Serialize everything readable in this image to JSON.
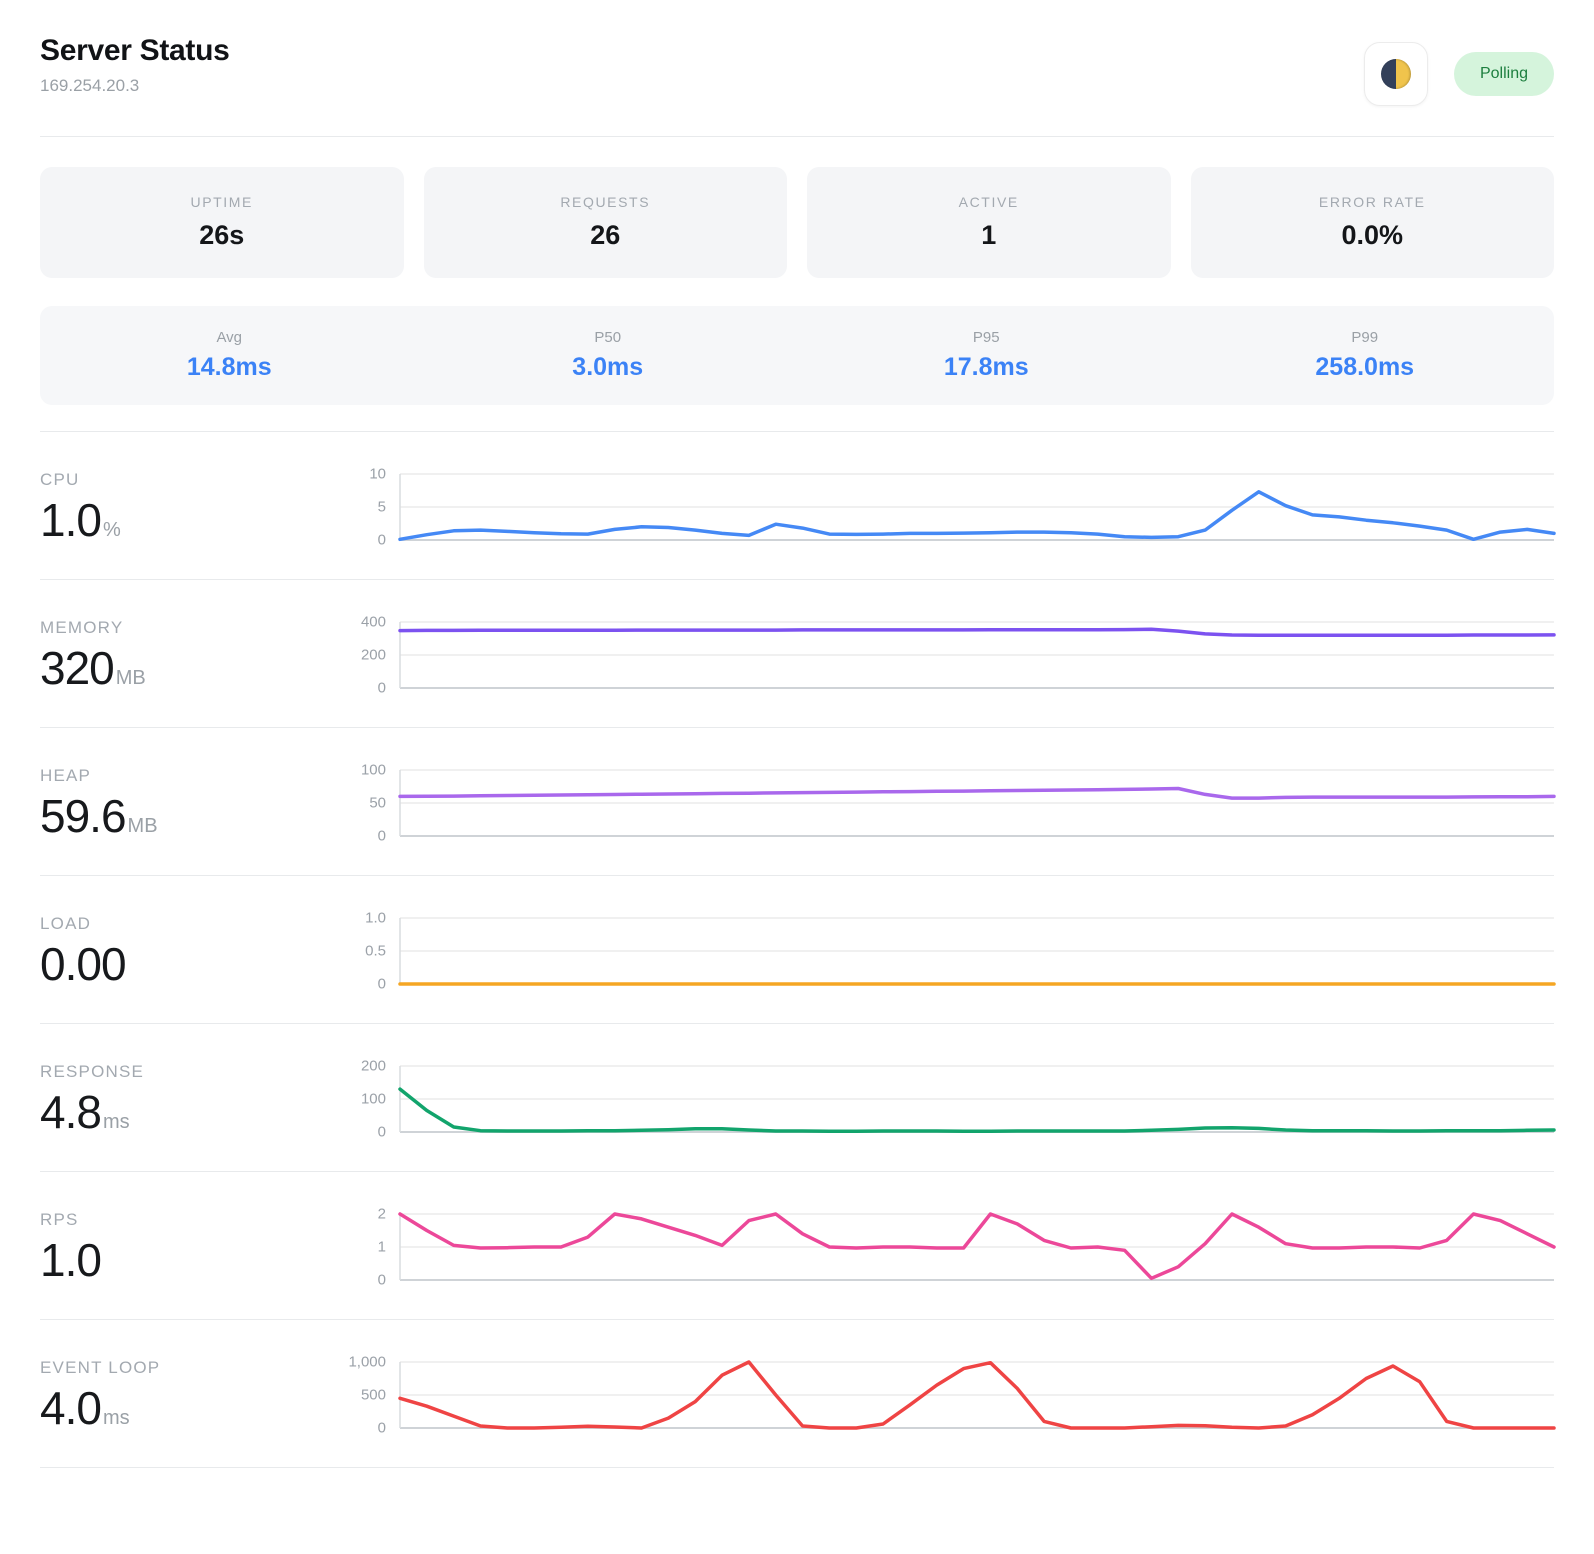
{
  "header": {
    "title": "Server Status",
    "subtitle": "169.254.20.3",
    "theme_icon": "first-quarter-moon",
    "status_badge": "Polling"
  },
  "colors": {
    "accent_blue": "#3b82f6",
    "badge_bg": "#d5f4dc",
    "badge_text": "#1d7f3f"
  },
  "stats": [
    {
      "label": "UPTIME",
      "value": "26s"
    },
    {
      "label": "REQUESTS",
      "value": "26"
    },
    {
      "label": "ACTIVE",
      "value": "1"
    },
    {
      "label": "ERROR RATE",
      "value": "0.0%"
    }
  ],
  "latency": [
    {
      "label": "Avg",
      "value": "14.8ms"
    },
    {
      "label": "P50",
      "value": "3.0ms"
    },
    {
      "label": "P95",
      "value": "17.8ms"
    },
    {
      "label": "P99",
      "value": "258.0ms"
    }
  ],
  "chart_data": [
    {
      "type": "line",
      "title": "CPU",
      "current_value": "1.0",
      "unit": "%",
      "color": "#4589f5",
      "ylim": [
        0,
        10
      ],
      "yticks": [
        "10",
        "5",
        "0"
      ],
      "grid": "horizontal",
      "legend": "none",
      "values": [
        0.1,
        0.8,
        1.4,
        1.5,
        1.3,
        1.1,
        0.95,
        0.9,
        1.6,
        2.0,
        1.9,
        1.5,
        1.0,
        0.7,
        2.4,
        1.8,
        0.9,
        0.85,
        0.9,
        1.0,
        1.0,
        1.05,
        1.1,
        1.2,
        1.2,
        1.1,
        0.9,
        0.5,
        0.4,
        0.5,
        1.5,
        4.5,
        7.3,
        5.2,
        3.8,
        3.5,
        3.0,
        2.6,
        2.1,
        1.5,
        0.1,
        1.2,
        1.6,
        1.0
      ]
    },
    {
      "type": "line",
      "title": "MEMORY",
      "current_value": "320",
      "unit": "MB",
      "color": "#7c52f0",
      "ylim": [
        0,
        400
      ],
      "yticks": [
        "400",
        "200",
        "0"
      ],
      "grid": "horizontal",
      "legend": "none",
      "values": [
        348,
        349,
        349,
        350,
        350,
        350,
        350,
        350,
        350,
        351,
        351,
        351,
        351,
        351,
        351,
        352,
        352,
        352,
        352,
        352,
        352,
        352,
        353,
        353,
        353,
        353,
        353,
        354,
        356,
        345,
        328,
        321,
        320,
        320,
        320,
        320,
        320,
        320,
        320,
        320,
        321,
        321,
        321,
        322
      ]
    },
    {
      "type": "line",
      "title": "HEAP",
      "current_value": "59.6",
      "unit": "MB",
      "color": "#a968ec",
      "ylim": [
        0,
        100
      ],
      "yticks": [
        "100",
        "50",
        "0"
      ],
      "grid": "horizontal",
      "legend": "none",
      "values": [
        60,
        60.2,
        60.5,
        60.9,
        61.3,
        61.7,
        62.1,
        62.5,
        62.9,
        63.3,
        63.7,
        64.1,
        64.5,
        64.9,
        65.3,
        65.7,
        66.1,
        66.5,
        66.9,
        67.3,
        67.7,
        68.1,
        68.5,
        68.9,
        69.3,
        69.7,
        70.1,
        70.6,
        71.2,
        72,
        63,
        57.5,
        57.5,
        58.5,
        59,
        59,
        59,
        59,
        59,
        59,
        59.2,
        59.4,
        59.6,
        60
      ]
    },
    {
      "type": "line",
      "title": "LOAD",
      "current_value": "0.00",
      "unit": "",
      "color": "#f5a623",
      "ylim": [
        0,
        1
      ],
      "yticks": [
        "1.0",
        "0.5",
        "0"
      ],
      "grid": "horizontal",
      "legend": "none",
      "values": [
        0,
        0,
        0,
        0,
        0,
        0,
        0,
        0,
        0,
        0,
        0,
        0
      ]
    },
    {
      "type": "line",
      "title": "RESPONSE",
      "current_value": "4.8",
      "unit": "ms",
      "color": "#12a46c",
      "ylim": [
        0,
        200
      ],
      "yticks": [
        "200",
        "100",
        "0"
      ],
      "grid": "horizontal",
      "legend": "none",
      "values": [
        130,
        65,
        15,
        4,
        3,
        3,
        3,
        4,
        4,
        5,
        7,
        10,
        10,
        6,
        3,
        3,
        2,
        2,
        3,
        3,
        3,
        2,
        2,
        3,
        3,
        3,
        3,
        3,
        5,
        8,
        12,
        13,
        11,
        6,
        4,
        4,
        4,
        3,
        3,
        4,
        4,
        4,
        5,
        6
      ]
    },
    {
      "type": "line",
      "title": "RPS",
      "current_value": "1.0",
      "unit": "",
      "color": "#ec4899",
      "ylim": [
        0,
        2
      ],
      "yticks": [
        "2",
        "1",
        "0"
      ],
      "grid": "horizontal",
      "legend": "none",
      "values": [
        2,
        1.5,
        1.05,
        0.97,
        0.98,
        1,
        1,
        1.3,
        2,
        1.85,
        1.6,
        1.35,
        1.05,
        1.8,
        2,
        1.4,
        1.0,
        0.97,
        1,
        1,
        0.97,
        0.97,
        2,
        1.7,
        1.2,
        0.97,
        1,
        0.9,
        0.05,
        0.4,
        1.1,
        2,
        1.6,
        1.1,
        0.97,
        0.97,
        1,
        1,
        0.97,
        1.2,
        2,
        1.8,
        1.4,
        1
      ]
    },
    {
      "type": "line",
      "title": "EVENT LOOP",
      "current_value": "4.0",
      "unit": "ms",
      "color": "#ef4444",
      "ylim": [
        0,
        1000
      ],
      "yticks": [
        "1,000",
        "500",
        "0"
      ],
      "grid": "horizontal",
      "legend": "none",
      "values": [
        450,
        330,
        180,
        30,
        0,
        0,
        10,
        25,
        15,
        0,
        150,
        400,
        800,
        1000,
        500,
        30,
        0,
        0,
        60,
        350,
        650,
        900,
        990,
        600,
        100,
        0,
        0,
        0,
        20,
        40,
        35,
        10,
        0,
        30,
        200,
        450,
        750,
        940,
        700,
        100,
        0,
        0,
        0,
        0
      ]
    }
  ]
}
